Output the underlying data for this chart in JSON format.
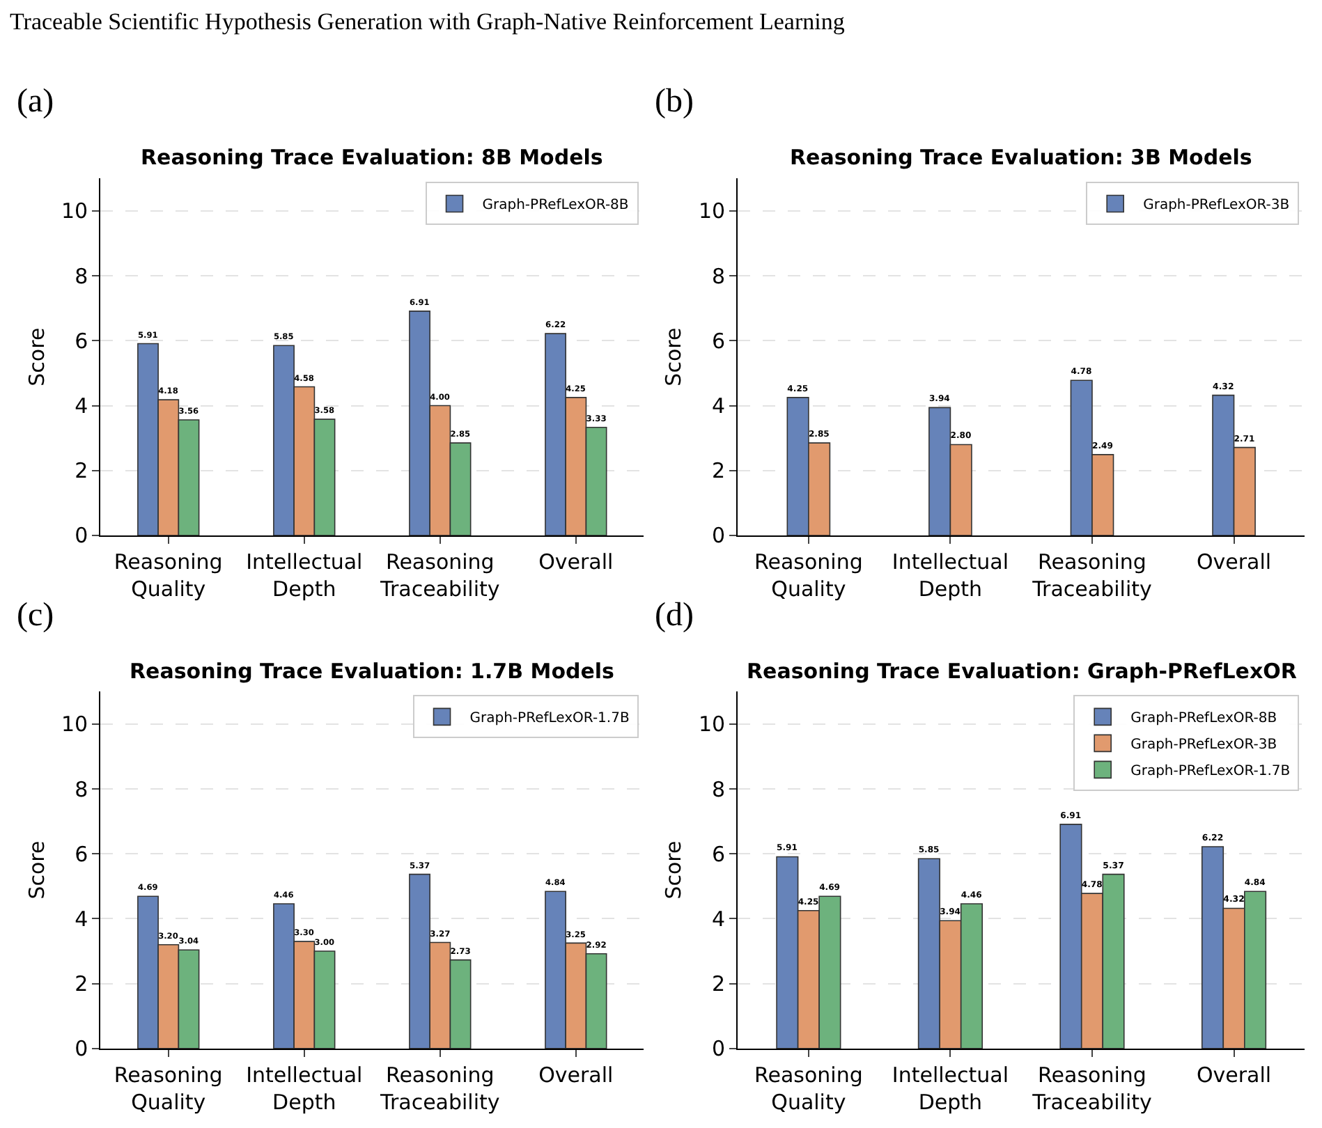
{
  "chart_data": [
    {
      "type": "bar",
      "title": "Reasoning Trace Evaluation: 8B Models",
      "ylabel": "Score",
      "annotations": [
        "Traceable Scientific Hypothesis Generation with Graph-Native Reinforcement Learning",
        "(a)"
      ],
      "categories": [
        "Reasoning Quality",
        "Intellectual Depth",
        "Reasoning Traceability",
        "Overall"
      ],
      "series": [
        {
          "name": "Graph-PRefLexOR-8B",
          "color": "#6683b9",
          "values": [
            5.91,
            5.85,
            6.91,
            6.22
          ],
          "value_labels": [
            "5.91",
            "5.85",
            "6.91",
            "6.22"
          ]
        },
        {
          "color": "#e19a6e",
          "values": [
            4.18,
            4.58,
            4.0,
            4.25
          ],
          "value_labels": [
            "4.18",
            "4.58",
            "4.00",
            "4.25"
          ]
        },
        {
          "color": "#6db27d",
          "values": [
            3.56,
            3.58,
            2.85,
            3.33
          ],
          "value_labels": [
            "3.56",
            "3.58",
            "2.85",
            "3.33"
          ]
        }
      ],
      "ylim": [
        0,
        11
      ],
      "yticks": [
        0,
        2,
        4,
        6,
        8,
        10
      ],
      "grid": "y",
      "legend": "top right"
    },
    {
      "type": "bar",
      "title": "Reasoning Trace Evaluation: 3B Models",
      "ylabel": "Score",
      "annotations": [
        "(b)"
      ],
      "categories": [
        "Reasoning Quality",
        "Intellectual Depth",
        "Reasoning Traceability",
        "Overall"
      ],
      "series": [
        {
          "name": "Graph-PRefLexOR-3B",
          "color": "#6683b9",
          "values": [
            4.25,
            3.94,
            4.78,
            4.32
          ],
          "value_labels": [
            "4.25",
            "3.94",
            "4.78",
            "4.32"
          ]
        },
        {
          "color": "#e19a6e",
          "values": [
            2.85,
            2.8,
            2.49,
            2.71
          ],
          "value_labels": [
            "2.85",
            "2.80",
            "2.49",
            "2.71"
          ]
        }
      ],
      "ylim": [
        0,
        11
      ],
      "yticks": [
        0,
        2,
        4,
        6,
        8,
        10
      ],
      "grid": "y",
      "legend": "top right"
    },
    {
      "type": "bar",
      "title": "Reasoning Trace Evaluation: 1.7B Models",
      "ylabel": "Score",
      "annotations": [
        "(c)"
      ],
      "categories": [
        "Reasoning Quality",
        "Intellectual Depth",
        "Reasoning Traceability",
        "Overall"
      ],
      "series": [
        {
          "name": "Graph-PRefLexOR-1.7B",
          "color": "#6683b9",
          "values": [
            4.69,
            4.46,
            5.37,
            4.84
          ],
          "value_labels": [
            "4.69",
            "4.46",
            "5.37",
            "4.84"
          ]
        },
        {
          "color": "#e19a6e",
          "values": [
            3.2,
            3.3,
            3.27,
            3.25
          ],
          "value_labels": [
            "3.20",
            "3.30",
            "3.27",
            "3.25"
          ]
        },
        {
          "color": "#6db27d",
          "values": [
            3.04,
            3.0,
            2.73,
            2.92
          ],
          "value_labels": [
            "3.04",
            "3.00",
            "2.73",
            "2.92"
          ]
        }
      ],
      "ylim": [
        0,
        11
      ],
      "yticks": [
        0,
        2,
        4,
        6,
        8,
        10
      ],
      "grid": "y",
      "legend": "top right"
    },
    {
      "type": "bar",
      "title": "Reasoning Trace Evaluation: Graph-PRefLexOR",
      "ylabel": "Score",
      "annotations": [
        "(d)"
      ],
      "categories": [
        "Reasoning Quality",
        "Intellectual Depth",
        "Reasoning Traceability",
        "Overall"
      ],
      "series": [
        {
          "name": "Graph-PRefLexOR-8B",
          "color": "#6683b9",
          "values": [
            5.91,
            5.85,
            6.91,
            6.22
          ],
          "value_labels": [
            "5.91",
            "5.85",
            "6.91",
            "6.22"
          ]
        },
        {
          "name": "Graph-PRefLexOR-3B",
          "color": "#e19a6e",
          "values": [
            4.25,
            3.94,
            4.78,
            4.32
          ],
          "value_labels": [
            "4.25",
            "3.94",
            "4.78",
            "4.32"
          ]
        },
        {
          "name": "Graph-PRefLexOR-1.7B",
          "color": "#6db27d",
          "values": [
            4.69,
            4.46,
            5.37,
            4.84
          ],
          "value_labels": [
            "4.69",
            "4.46",
            "5.37",
            "4.84"
          ]
        }
      ],
      "ylim": [
        0,
        11
      ],
      "yticks": [
        0,
        2,
        4,
        6,
        8,
        10
      ],
      "grid": "y",
      "legend": "top right"
    }
  ]
}
